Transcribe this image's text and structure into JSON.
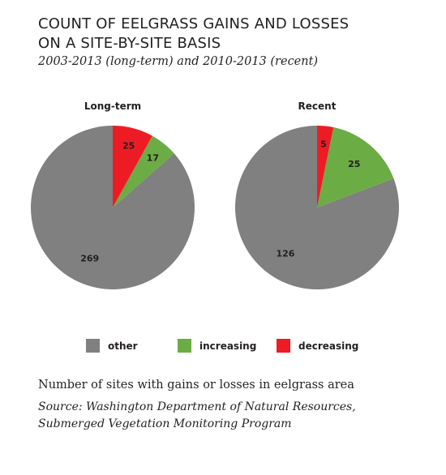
{
  "title_line1": "COUNT OF EELGRASS GAINS AND LOSSES",
  "title_line2": "ON A SITE-BY-SITE BASIS",
  "subtitle": "2003-2013 (long-term) and 2010-2013 (recent)",
  "colors": {
    "other": "#808080",
    "increasing": "#6cac45",
    "decreasing": "#ed1c24"
  },
  "chart_data": [
    {
      "type": "pie",
      "title": "Long-term",
      "categories": [
        "other",
        "increasing",
        "decreasing"
      ],
      "values": [
        269,
        17,
        25
      ]
    },
    {
      "type": "pie",
      "title": "Recent",
      "categories": [
        "other",
        "increasing",
        "decreasing"
      ],
      "values": [
        126,
        25,
        5
      ]
    }
  ],
  "legend": [
    {
      "label": "other",
      "color": "#808080"
    },
    {
      "label": "increasing",
      "color": "#6cac45"
    },
    {
      "label": "decreasing",
      "color": "#ed1c24"
    }
  ],
  "note": "Number of sites with gains or losses in eelgrass area",
  "source": "Source: Washington Department of Natural Resources, Submerged Vegetation Monitoring Program"
}
